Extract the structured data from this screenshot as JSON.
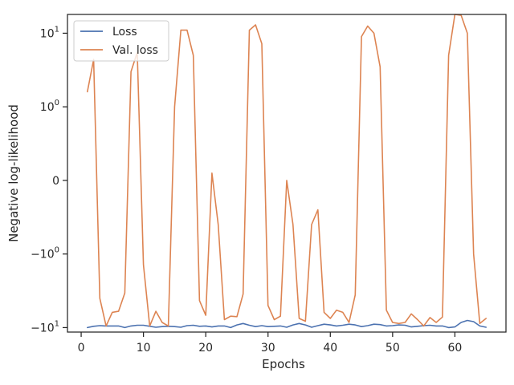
{
  "chart_data": {
    "type": "line",
    "xlabel": "Epochs",
    "ylabel": "Negative log-likelihood",
    "y_scale": "symlog",
    "symlog_linthresh": 1,
    "xlim": [
      -2.2,
      68.2
    ],
    "ylim": [
      -11.5,
      18
    ],
    "grid": false,
    "legend_position": "upper left",
    "x_ticks": [
      0,
      10,
      20,
      30,
      40,
      50,
      60
    ],
    "x_tick_labels": [
      "0",
      "10",
      "20",
      "30",
      "40",
      "50",
      "60"
    ],
    "y_ticks": [
      -10,
      -1,
      0,
      1,
      10
    ],
    "y_tick_labels": [
      [
        "−10",
        "1"
      ],
      [
        "−10",
        "0"
      ],
      [
        "0",
        ""
      ],
      [
        "10",
        "0"
      ],
      [
        "10",
        "1"
      ]
    ],
    "series": [
      {
        "name": "Loss",
        "color": "#4c72b0",
        "x": [
          1,
          2,
          3,
          4,
          5,
          6,
          7,
          8,
          9,
          10,
          11,
          12,
          13,
          14,
          15,
          16,
          17,
          18,
          19,
          20,
          21,
          22,
          23,
          24,
          25,
          26,
          27,
          28,
          29,
          30,
          31,
          32,
          33,
          34,
          35,
          36,
          37,
          38,
          39,
          40,
          41,
          42,
          43,
          44,
          45,
          46,
          47,
          48,
          49,
          50,
          51,
          52,
          53,
          54,
          55,
          56,
          57,
          58,
          59,
          60,
          61,
          62,
          63,
          64,
          65
        ],
        "y": [
          -10.0,
          -9.6,
          -9.4,
          -9.5,
          -9.5,
          -9.5,
          -10.0,
          -9.5,
          -9.3,
          -9.3,
          -9.6,
          -9.9,
          -9.7,
          -9.6,
          -9.7,
          -9.9,
          -9.4,
          -9.3,
          -9.6,
          -9.5,
          -9.8,
          -9.5,
          -9.5,
          -10.0,
          -9.2,
          -8.8,
          -9.3,
          -9.7,
          -9.4,
          -9.7,
          -9.6,
          -9.5,
          -9.9,
          -9.2,
          -8.8,
          -9.2,
          -9.9,
          -9.4,
          -9.0,
          -9.2,
          -9.5,
          -9.3,
          -9.0,
          -9.2,
          -9.7,
          -9.4,
          -9.0,
          -9.1,
          -9.5,
          -9.4,
          -9.2,
          -9.3,
          -9.8,
          -9.6,
          -9.4,
          -9.3,
          -9.5,
          -9.5,
          -10.0,
          -9.8,
          -8.5,
          -8.0,
          -8.3,
          -9.5,
          -9.9
        ]
      },
      {
        "name": "Val. loss",
        "color": "#dd8452",
        "x": [
          1,
          2,
          3,
          4,
          5,
          6,
          7,
          8,
          9,
          10,
          11,
          12,
          13,
          14,
          15,
          16,
          17,
          18,
          19,
          20,
          21,
          22,
          23,
          24,
          25,
          26,
          27,
          28,
          29,
          30,
          31,
          32,
          33,
          34,
          35,
          36,
          37,
          38,
          39,
          40,
          41,
          42,
          43,
          44,
          45,
          46,
          47,
          48,
          49,
          50,
          51,
          52,
          53,
          54,
          55,
          56,
          57,
          58,
          59,
          60,
          61,
          62,
          63,
          64,
          65
        ],
        "y": [
          1.6,
          4.4,
          -4.0,
          -9.5,
          -6.2,
          -6.0,
          -3.4,
          3.0,
          5.5,
          -1.4,
          -9.5,
          -6.0,
          -8.5,
          -9.5,
          1.0,
          11.0,
          11.0,
          5.0,
          -4.3,
          -6.8,
          0.1,
          -0.6,
          -7.8,
          -7.0,
          -7.1,
          -3.5,
          11.0,
          13.0,
          7.2,
          -5.0,
          -7.8,
          -7.0,
          0.0,
          -0.6,
          -7.5,
          -8.2,
          -0.6,
          -0.4,
          -6.2,
          -7.5,
          -5.8,
          -6.2,
          -8.5,
          -3.6,
          9.0,
          12.5,
          10.0,
          3.5,
          -5.8,
          -8.5,
          -8.8,
          -8.5,
          -6.5,
          -7.8,
          -9.5,
          -7.3,
          -8.5,
          -7.2,
          5.0,
          18.0,
          17.5,
          10.0,
          -1.0,
          -8.8,
          -7.5
        ]
      }
    ]
  }
}
